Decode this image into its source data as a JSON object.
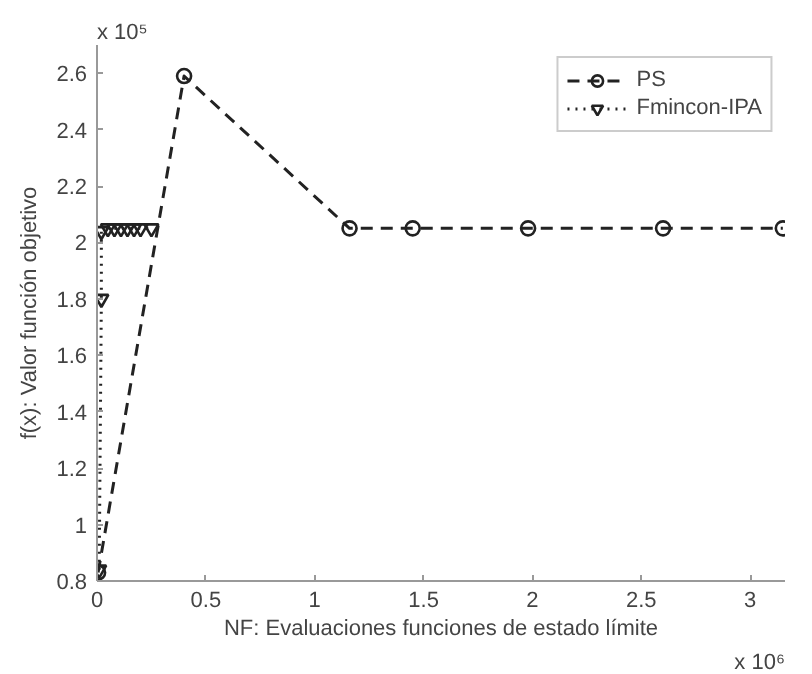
{
  "chart_data": {
    "type": "line",
    "xlabel": "NF: Evaluaciones funciones de estado límite",
    "ylabel": "f(x): Valor función objetivo",
    "xlim": [
      0,
      3.16
    ],
    "ylim": [
      0.8,
      2.7
    ],
    "xticks": [
      0,
      0.5,
      1,
      1.5,
      2,
      2.5,
      3
    ],
    "yticks": [
      0.8,
      1,
      1.2,
      1.4,
      1.6,
      1.8,
      2,
      2.2,
      2.4,
      2.6
    ],
    "grid": false,
    "legend": "top right",
    "annotations": [
      "x 10⁵",
      "x 10⁶"
    ],
    "series": [
      {
        "name": "PS",
        "color": "#222222",
        "marker": "circle",
        "line_style": "dashed",
        "x": [
          0.005,
          0.4,
          1.16,
          1.45,
          1.98,
          2.6,
          3.15
        ],
        "values": [
          0.83,
          2.59,
          2.05,
          2.05,
          2.05,
          2.05,
          2.05
        ]
      },
      {
        "name": "Fmincon-IPA",
        "color": "#222222",
        "marker": "triangle",
        "line_style": "dotted",
        "x": [
          0.01,
          0.02,
          0.02,
          0.05,
          0.08,
          0.11,
          0.14,
          0.17,
          0.2,
          0.25
        ],
        "values": [
          0.84,
          1.8,
          2.04,
          2.05,
          2.05,
          2.05,
          2.05,
          2.05,
          2.05,
          2.05
        ]
      }
    ]
  }
}
